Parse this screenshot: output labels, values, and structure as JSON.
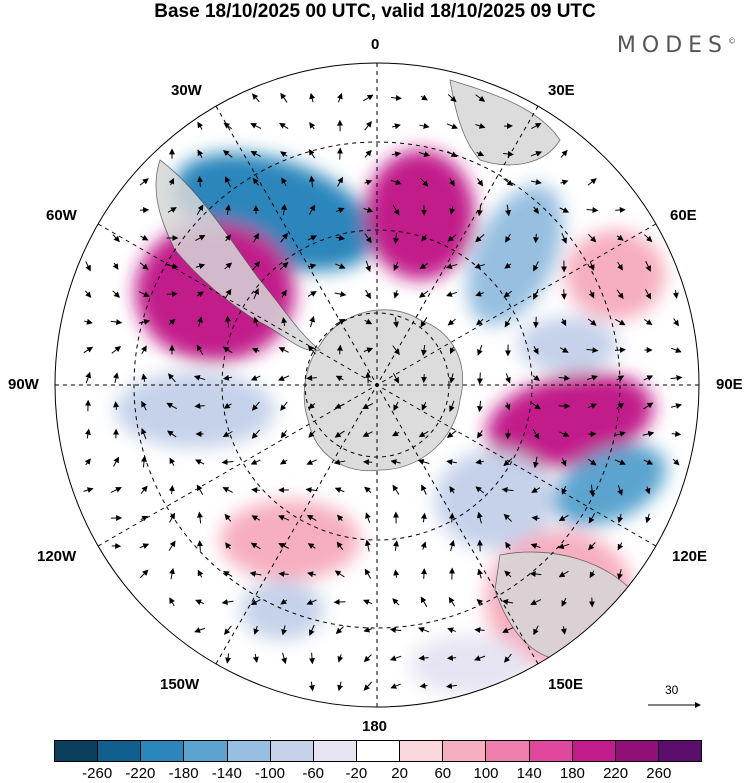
{
  "title": "Base 18/10/2025 00 UTC, valid 18/10/2025 09 UTC",
  "brand": {
    "name": "MODES",
    "mark": "©"
  },
  "longitude_labels": {
    "top": "0",
    "bottom": "180",
    "left": "90W",
    "right": "90E",
    "w30": "30W",
    "e30": "30E",
    "w60": "60W",
    "e60": "60E",
    "w120": "120W",
    "e120": "120E",
    "w150": "150W",
    "e150": "150E"
  },
  "vector_scale": {
    "label": "30"
  },
  "colorbar": {
    "ticks": [
      "-260",
      "-220",
      "-180",
      "-140",
      "-100",
      "-60",
      "-20",
      "20",
      "60",
      "100",
      "140",
      "180",
      "220",
      "260"
    ],
    "colors": [
      "#0b3d5c",
      "#105f8f",
      "#2a86bb",
      "#5aa4cf",
      "#96bfe0",
      "#c5d2ea",
      "#e6e4f2",
      "#ffffff",
      "#fbd8de",
      "#f6aec0",
      "#ee7eac",
      "#e1479d",
      "#c21b8b",
      "#901078",
      "#5b0e6e"
    ]
  },
  "anomalies": [
    {
      "name": "anomaly-low-south-atlantic",
      "value": -200
    },
    {
      "name": "anomaly-high-atlantic-0",
      "value": 200
    },
    {
      "name": "anomaly-high-south-america",
      "value": 200
    },
    {
      "name": "anomaly-low-30e",
      "value": -140
    },
    {
      "name": "anomaly-low-60e",
      "value": -100
    },
    {
      "name": "anomaly-high-90e",
      "value": 180
    },
    {
      "name": "anomaly-low-110e",
      "value": -180
    },
    {
      "name": "anomaly-low-120e",
      "value": -100
    },
    {
      "name": "anomaly-low-90w",
      "value": -100
    },
    {
      "name": "anomaly-low-150w",
      "value": -100
    },
    {
      "name": "anomaly-high-140e",
      "value": 60
    },
    {
      "name": "anomaly-high-120w",
      "value": 60
    },
    {
      "name": "anomaly-high-60e",
      "value": 60
    },
    {
      "name": "anomaly-low-160e",
      "value": -60
    }
  ]
}
